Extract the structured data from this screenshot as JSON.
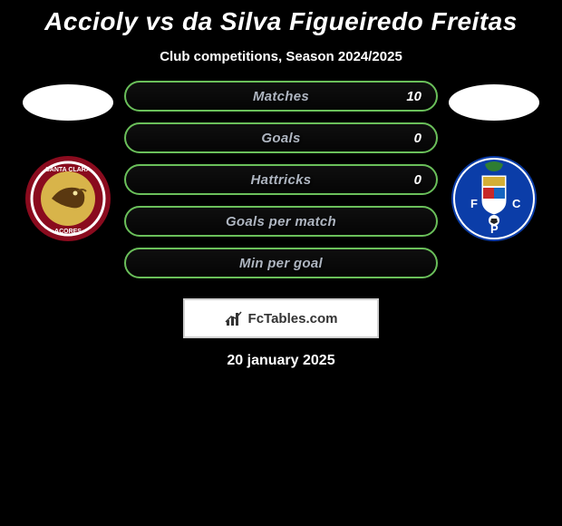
{
  "title": "Accioly vs da Silva Figueiredo Freitas",
  "subtitle": "Club competitions, Season 2024/2025",
  "colors": {
    "background": "#000000",
    "text": "#ffffff",
    "bar_border": "#6abf5a",
    "bar_label": "#aeb5c0",
    "watermark_bg": "#ffffff",
    "watermark_text": "#333333"
  },
  "player_left": {
    "oval_color": "#ffffff",
    "badge": {
      "outer": "#8a0b1e",
      "ring": "#ffffff",
      "inner": "#d8b44a",
      "text": "SANTA CLARA",
      "subtext": "AÇORES"
    }
  },
  "player_right": {
    "oval_color": "#ffffff",
    "badge": {
      "outer": "#0b3da8",
      "ring": "#ffffff",
      "crest": "#d4af37",
      "letters": "F.C.P"
    }
  },
  "stats": [
    {
      "label": "Matches",
      "value_right": "10",
      "show_right": true
    },
    {
      "label": "Goals",
      "value_right": "0",
      "show_right": true
    },
    {
      "label": "Hattricks",
      "value_right": "0",
      "show_right": true
    },
    {
      "label": "Goals per match",
      "value_right": "",
      "show_right": false
    },
    {
      "label": "Min per goal",
      "value_right": "",
      "show_right": false
    }
  ],
  "watermark": "FcTables.com",
  "footer_date": "20 january 2025"
}
